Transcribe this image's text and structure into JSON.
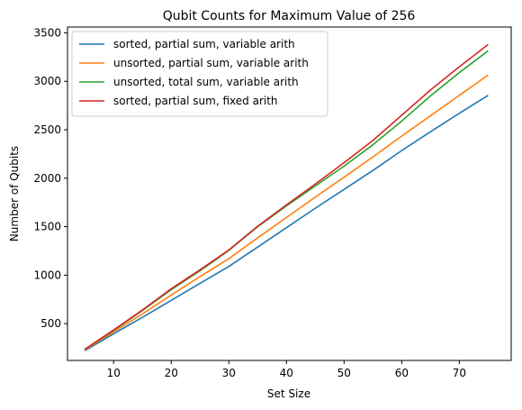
{
  "chart_data": {
    "type": "line",
    "title": "Qubit Counts for Maximum Value of 256",
    "xlabel": "Set Size",
    "ylabel": "Number of Qubits",
    "xlim": [
      2,
      79
    ],
    "ylim": [
      120,
      3560
    ],
    "xticks": [
      10,
      20,
      30,
      40,
      50,
      60,
      70
    ],
    "yticks": [
      500,
      1000,
      1500,
      2000,
      2500,
      3000,
      3500
    ],
    "grid": false,
    "legend_position": "top-left",
    "x": [
      5,
      10,
      15,
      20,
      25,
      30,
      35,
      40,
      45,
      50,
      55,
      60,
      65,
      70,
      75
    ],
    "series": [
      {
        "name": "sorted, partial sum, variable arith",
        "color": "#1f77b4",
        "values": [
          220,
          395,
          565,
          740,
          915,
          1090,
          1290,
          1490,
          1690,
          1885,
          2080,
          2285,
          2480,
          2670,
          2855
        ]
      },
      {
        "name": "unsorted, partial sum, variable arith",
        "color": "#ff7f0e",
        "values": [
          230,
          415,
          600,
          795,
          985,
          1170,
          1385,
          1595,
          1805,
          2010,
          2220,
          2435,
          2645,
          2855,
          3065
        ]
      },
      {
        "name": "unsorted, total sum, variable arith",
        "color": "#2ca02c",
        "values": [
          235,
          430,
          635,
          850,
          1045,
          1255,
          1500,
          1715,
          1920,
          2125,
          2345,
          2590,
          2850,
          3090,
          3315
        ]
      },
      {
        "name": "sorted, partial sum, fixed arith",
        "color": "#d62728",
        "values": [
          235,
          435,
          640,
          860,
          1055,
          1260,
          1505,
          1725,
          1940,
          2160,
          2390,
          2650,
          2910,
          3150,
          3380
        ]
      }
    ]
  }
}
